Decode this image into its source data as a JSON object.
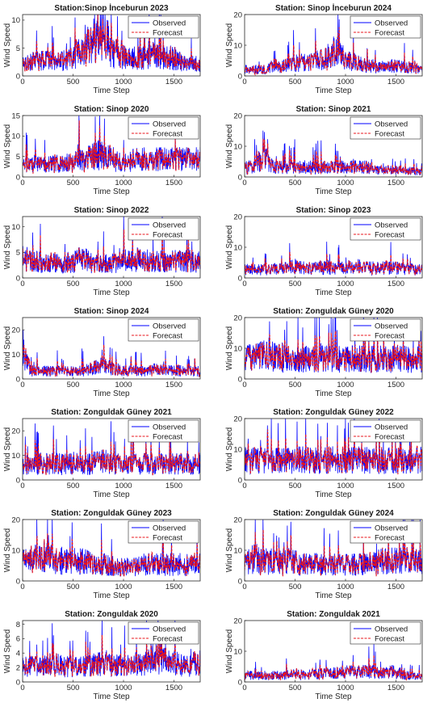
{
  "figure": {
    "background": "#ffffff"
  },
  "legend": {
    "observed": "Observed",
    "forecast": "Forecast",
    "observed_color": "#0000ff",
    "forecast_color": "#e8141c",
    "placement": "top-right"
  },
  "axes_defaults": {
    "xlabel": "Time Step",
    "ylabel": "Wind Speed",
    "xlim": [
      0,
      1760
    ],
    "xticks": [
      0,
      500,
      1000,
      1500
    ]
  },
  "chart_data": [
    {
      "type": "line",
      "title": "Station:Sinop İnceburun 2023",
      "ylim": [
        0,
        11
      ],
      "yticks": [
        0,
        5,
        10
      ],
      "profile": [
        [
          0,
          2.5
        ],
        [
          200,
          2.5
        ],
        [
          400,
          2.5
        ],
        [
          600,
          4
        ],
        [
          700,
          6
        ],
        [
          800,
          7
        ],
        [
          900,
          4
        ],
        [
          1000,
          3
        ],
        [
          1100,
          3
        ],
        [
          1200,
          3
        ],
        [
          1300,
          4
        ],
        [
          1400,
          3
        ],
        [
          1500,
          3
        ],
        [
          1600,
          2
        ],
        [
          1760,
          2
        ]
      ]
    },
    {
      "type": "line",
      "title": "Station: Sinop İnceburun 2024",
      "ylim": [
        0,
        20
      ],
      "yticks": [
        0,
        10,
        20
      ],
      "profile": [
        [
          0,
          2
        ],
        [
          200,
          2
        ],
        [
          300,
          3
        ],
        [
          400,
          3
        ],
        [
          500,
          4
        ],
        [
          600,
          4
        ],
        [
          700,
          5
        ],
        [
          800,
          5
        ],
        [
          900,
          8
        ],
        [
          1000,
          5
        ],
        [
          1100,
          4
        ],
        [
          1200,
          3
        ],
        [
          1300,
          3
        ],
        [
          1400,
          3
        ],
        [
          1500,
          3
        ],
        [
          1760,
          2
        ]
      ]
    },
    {
      "type": "line",
      "title": "Station: Sinop 2020",
      "ylim": [
        0,
        15
      ],
      "yticks": [
        0,
        5,
        10,
        15
      ],
      "profile": [
        [
          0,
          3
        ],
        [
          200,
          3
        ],
        [
          400,
          3
        ],
        [
          600,
          4
        ],
        [
          700,
          5
        ],
        [
          800,
          5
        ],
        [
          900,
          4
        ],
        [
          1000,
          3
        ],
        [
          1100,
          4
        ],
        [
          1200,
          4
        ],
        [
          1300,
          4
        ],
        [
          1400,
          4
        ],
        [
          1500,
          4
        ],
        [
          1600,
          4
        ],
        [
          1760,
          4
        ]
      ]
    },
    {
      "type": "line",
      "title": "Station: Sinop 2021",
      "ylim": [
        0,
        20
      ],
      "yticks": [
        0,
        10,
        20
      ],
      "profile": [
        [
          0,
          3
        ],
        [
          100,
          3
        ],
        [
          150,
          5
        ],
        [
          200,
          6
        ],
        [
          300,
          3
        ],
        [
          400,
          3
        ],
        [
          500,
          3
        ],
        [
          600,
          3
        ],
        [
          800,
          3
        ],
        [
          1000,
          3
        ],
        [
          1100,
          3
        ],
        [
          1200,
          3
        ],
        [
          1300,
          2
        ],
        [
          1400,
          2
        ],
        [
          1600,
          2
        ],
        [
          1760,
          1.5
        ]
      ]
    },
    {
      "type": "line",
      "title": "Station: Sinop 2022",
      "ylim": [
        0,
        12
      ],
      "yticks": [
        0,
        5,
        10
      ],
      "profile": [
        [
          0,
          4
        ],
        [
          100,
          3
        ],
        [
          200,
          3
        ],
        [
          400,
          2.5
        ],
        [
          600,
          3.5
        ],
        [
          700,
          2.5
        ],
        [
          800,
          2.5
        ],
        [
          1000,
          3
        ],
        [
          1100,
          3.5
        ],
        [
          1200,
          3
        ],
        [
          1300,
          3
        ],
        [
          1400,
          3
        ],
        [
          1500,
          3
        ],
        [
          1760,
          3
        ]
      ]
    },
    {
      "type": "line",
      "title": "Station: Sinop 2023",
      "ylim": [
        0,
        20
      ],
      "yticks": [
        0,
        10,
        20
      ],
      "profile": [
        [
          0,
          2.5
        ],
        [
          200,
          2.5
        ],
        [
          400,
          3
        ],
        [
          500,
          3.5
        ],
        [
          600,
          3
        ],
        [
          800,
          3
        ],
        [
          1000,
          3
        ],
        [
          1100,
          3.5
        ],
        [
          1200,
          3
        ],
        [
          1300,
          3
        ],
        [
          1500,
          3
        ],
        [
          1760,
          2.5
        ]
      ]
    },
    {
      "type": "line",
      "title": "Station: Sinop 2024",
      "ylim": [
        0,
        25
      ],
      "yticks": [
        0,
        10,
        20
      ],
      "profile": [
        [
          0,
          12
        ],
        [
          30,
          8
        ],
        [
          80,
          3
        ],
        [
          200,
          3
        ],
        [
          400,
          3
        ],
        [
          600,
          3
        ],
        [
          700,
          4
        ],
        [
          800,
          5
        ],
        [
          900,
          4
        ],
        [
          1000,
          3
        ],
        [
          1200,
          3
        ],
        [
          1300,
          3.5
        ],
        [
          1400,
          3.5
        ],
        [
          1600,
          3
        ],
        [
          1760,
          3
        ]
      ]
    },
    {
      "type": "line",
      "title": "Station: Zonguldak Güney 2020",
      "ylim": [
        0,
        20
      ],
      "yticks": [
        0,
        10,
        20
      ],
      "profile": [
        [
          0,
          6
        ],
        [
          200,
          7
        ],
        [
          300,
          7
        ],
        [
          400,
          6
        ],
        [
          600,
          6
        ],
        [
          800,
          6
        ],
        [
          1000,
          6
        ],
        [
          1200,
          6
        ],
        [
          1400,
          6
        ],
        [
          1600,
          6
        ],
        [
          1760,
          6
        ]
      ]
    },
    {
      "type": "line",
      "title": "Station: Zonguldak Güney 2021",
      "ylim": [
        0,
        25
      ],
      "yticks": [
        0,
        10,
        20
      ],
      "profile": [
        [
          0,
          6
        ],
        [
          200,
          6
        ],
        [
          400,
          6
        ],
        [
          600,
          6
        ],
        [
          800,
          7
        ],
        [
          900,
          6
        ],
        [
          1000,
          6
        ],
        [
          1200,
          6
        ],
        [
          1400,
          6
        ],
        [
          1600,
          6
        ],
        [
          1760,
          6
        ]
      ]
    },
    {
      "type": "line",
      "title": "Station: Zonguldak Güney 2022",
      "ylim": [
        0,
        20
      ],
      "yticks": [
        0,
        10,
        20
      ],
      "profile": [
        [
          0,
          6
        ],
        [
          200,
          6
        ],
        [
          400,
          6
        ],
        [
          600,
          6
        ],
        [
          800,
          6
        ],
        [
          1000,
          6
        ],
        [
          1200,
          6
        ],
        [
          1400,
          6
        ],
        [
          1600,
          6
        ],
        [
          1760,
          6
        ]
      ]
    },
    {
      "type": "line",
      "title": "Station: Zonguldak Güney 2023",
      "ylim": [
        0,
        20
      ],
      "yticks": [
        0,
        10,
        20
      ],
      "profile": [
        [
          0,
          6
        ],
        [
          200,
          7
        ],
        [
          300,
          7
        ],
        [
          400,
          6
        ],
        [
          600,
          6
        ],
        [
          800,
          5
        ],
        [
          1000,
          4
        ],
        [
          1200,
          5
        ],
        [
          1400,
          5
        ],
        [
          1600,
          5
        ],
        [
          1760,
          5
        ]
      ]
    },
    {
      "type": "line",
      "title": "Station: Zonguldak Güney 2024",
      "ylim": [
        0,
        20
      ],
      "yticks": [
        0,
        10,
        20
      ],
      "profile": [
        [
          0,
          5
        ],
        [
          100,
          7
        ],
        [
          200,
          6
        ],
        [
          400,
          6
        ],
        [
          600,
          5
        ],
        [
          800,
          5
        ],
        [
          1000,
          5
        ],
        [
          1200,
          5
        ],
        [
          1400,
          6
        ],
        [
          1600,
          6
        ],
        [
          1760,
          6
        ]
      ]
    },
    {
      "type": "line",
      "title": "Station: Zonguldak 2020",
      "ylim": [
        0,
        8.5
      ],
      "yticks": [
        0,
        2,
        4,
        6,
        8
      ],
      "profile": [
        [
          0,
          2
        ],
        [
          200,
          2
        ],
        [
          300,
          2.5
        ],
        [
          400,
          2
        ],
        [
          600,
          2
        ],
        [
          800,
          2.5
        ],
        [
          1000,
          2
        ],
        [
          1200,
          2.5
        ],
        [
          1300,
          3
        ],
        [
          1400,
          3
        ],
        [
          1500,
          2.5
        ],
        [
          1600,
          2
        ],
        [
          1760,
          2.5
        ]
      ]
    },
    {
      "type": "line",
      "title": "Station: Zonguldak 2021",
      "ylim": [
        0,
        20
      ],
      "yticks": [
        0,
        10,
        20
      ],
      "profile": [
        [
          0,
          2
        ],
        [
          200,
          2
        ],
        [
          400,
          2
        ],
        [
          500,
          2.5
        ],
        [
          600,
          2
        ],
        [
          700,
          2.5
        ],
        [
          800,
          2.5
        ],
        [
          1000,
          3
        ],
        [
          1100,
          3
        ],
        [
          1200,
          3
        ],
        [
          1300,
          3
        ],
        [
          1400,
          3
        ],
        [
          1500,
          3
        ],
        [
          1600,
          2
        ],
        [
          1760,
          1.5
        ]
      ]
    }
  ]
}
